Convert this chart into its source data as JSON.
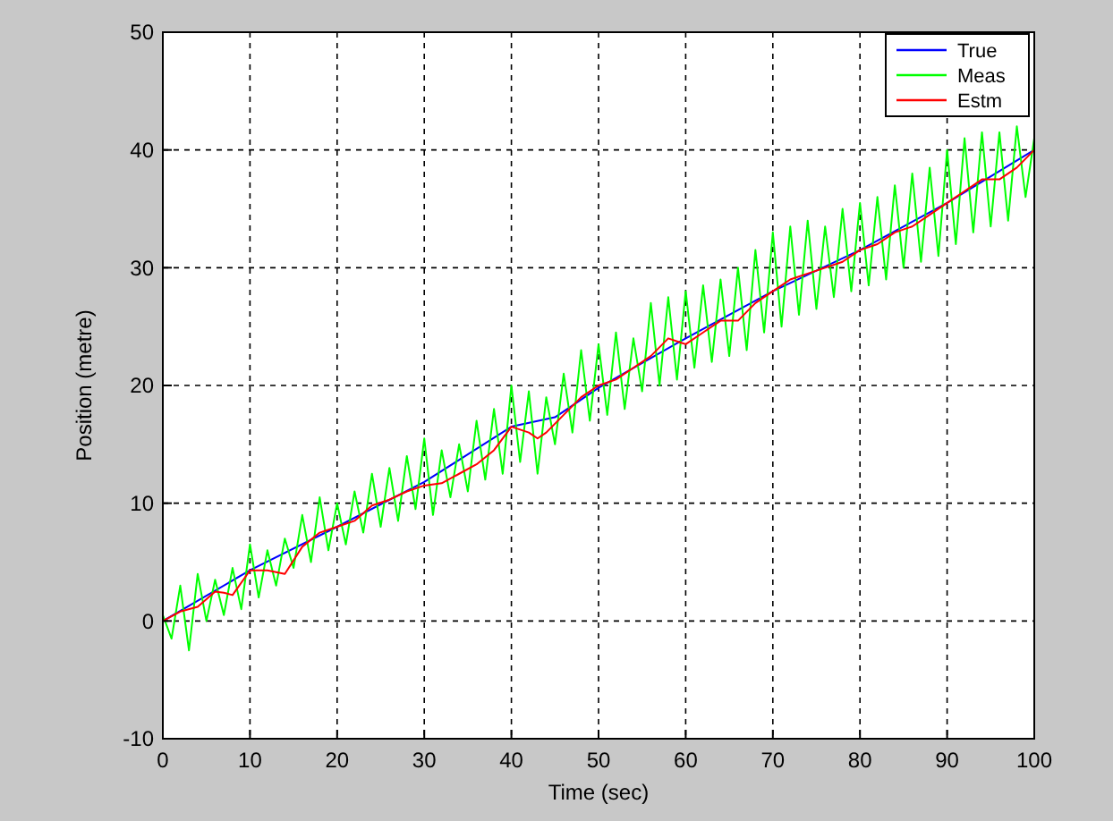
{
  "chart_data": {
    "type": "line",
    "xlabel": "Time (sec)",
    "ylabel": "Position (metre)",
    "xlim": [
      0,
      100
    ],
    "ylim": [
      -10,
      50
    ],
    "xticks": [
      0,
      10,
      20,
      30,
      40,
      50,
      60,
      70,
      80,
      90,
      100
    ],
    "yticks": [
      -10,
      0,
      10,
      20,
      30,
      40,
      50
    ],
    "grid": true,
    "legend": "top right",
    "line_style": "solid",
    "marker": "none",
    "series": [
      {
        "name": "True",
        "color": "#0000ff",
        "x": [
          0,
          10,
          20,
          30,
          40,
          45,
          50,
          60,
          70,
          80,
          90,
          100
        ],
        "values": [
          0,
          4.3,
          8,
          11.8,
          16.5,
          17.3,
          19.8,
          24,
          28,
          31.5,
          35.5,
          40
        ]
      },
      {
        "name": "Meas",
        "color": "#00ff00",
        "x": [
          0,
          1,
          2,
          3,
          4,
          5,
          6,
          7,
          8,
          9,
          10,
          11,
          12,
          13,
          14,
          15,
          16,
          17,
          18,
          19,
          20,
          21,
          22,
          23,
          24,
          25,
          26,
          27,
          28,
          29,
          30,
          31,
          32,
          33,
          34,
          35,
          36,
          37,
          38,
          39,
          40,
          41,
          42,
          43,
          44,
          45,
          46,
          47,
          48,
          49,
          50,
          51,
          52,
          53,
          54,
          55,
          56,
          57,
          58,
          59,
          60,
          61,
          62,
          63,
          64,
          65,
          66,
          67,
          68,
          69,
          70,
          71,
          72,
          73,
          74,
          75,
          76,
          77,
          78,
          79,
          80,
          81,
          82,
          83,
          84,
          85,
          86,
          87,
          88,
          89,
          90,
          91,
          92,
          93,
          94,
          95,
          96,
          97,
          98,
          99,
          100
        ],
        "values": [
          0.5,
          -1.5,
          3,
          -2.5,
          4,
          0,
          3.5,
          0.5,
          4.5,
          1,
          6.5,
          2,
          6,
          3,
          7,
          4.5,
          9,
          5,
          10.5,
          6,
          10,
          6.5,
          11,
          7.5,
          12.5,
          8,
          13,
          8.5,
          14,
          9.5,
          15.5,
          9,
          14.5,
          10.5,
          15,
          11,
          17,
          12,
          18,
          12.5,
          20,
          13.5,
          19.5,
          12.5,
          19,
          15,
          21,
          16,
          23,
          17,
          23.5,
          17.5,
          24.5,
          18,
          24,
          19.5,
          27,
          20,
          27.5,
          20.5,
          28,
          21.5,
          28.5,
          22,
          29,
          22.5,
          30,
          23,
          31.5,
          24.5,
          33,
          25,
          33.5,
          26,
          34,
          26.5,
          33.5,
          27.5,
          35,
          28,
          35.5,
          28.5,
          36,
          29,
          37,
          30,
          38,
          30.5,
          38.5,
          31,
          40,
          32,
          41,
          33,
          41.5,
          33.5,
          41.5,
          34,
          42,
          36,
          41
        ]
      },
      {
        "name": "Estm",
        "color": "#ff0000",
        "x": [
          0,
          2,
          4,
          6,
          7,
          8,
          10,
          12,
          14,
          16,
          18,
          20,
          22,
          24,
          26,
          28,
          30,
          32,
          34,
          36,
          38,
          40,
          42,
          43,
          44,
          46,
          48,
          50,
          52,
          54,
          56,
          58,
          60,
          62,
          64,
          66,
          68,
          70,
          72,
          74,
          76,
          78,
          80,
          82,
          84,
          86,
          88,
          90,
          92,
          94,
          96,
          98,
          100
        ],
        "values": [
          0,
          0.8,
          1.2,
          2.5,
          2.4,
          2.2,
          4.3,
          4.3,
          4,
          6.3,
          7.5,
          8,
          8.5,
          9.8,
          10.3,
          11,
          11.5,
          11.7,
          12.5,
          13.3,
          14.5,
          16.5,
          16,
          15.5,
          16,
          17.5,
          19,
          20,
          20.5,
          21.5,
          22.5,
          24,
          23.5,
          24.5,
          25.5,
          25.5,
          27,
          28,
          29,
          29.5,
          30,
          30.5,
          31.5,
          32,
          33,
          33.5,
          34.5,
          35.5,
          36.5,
          37.5,
          37.5,
          38.5,
          40
        ]
      }
    ]
  }
}
